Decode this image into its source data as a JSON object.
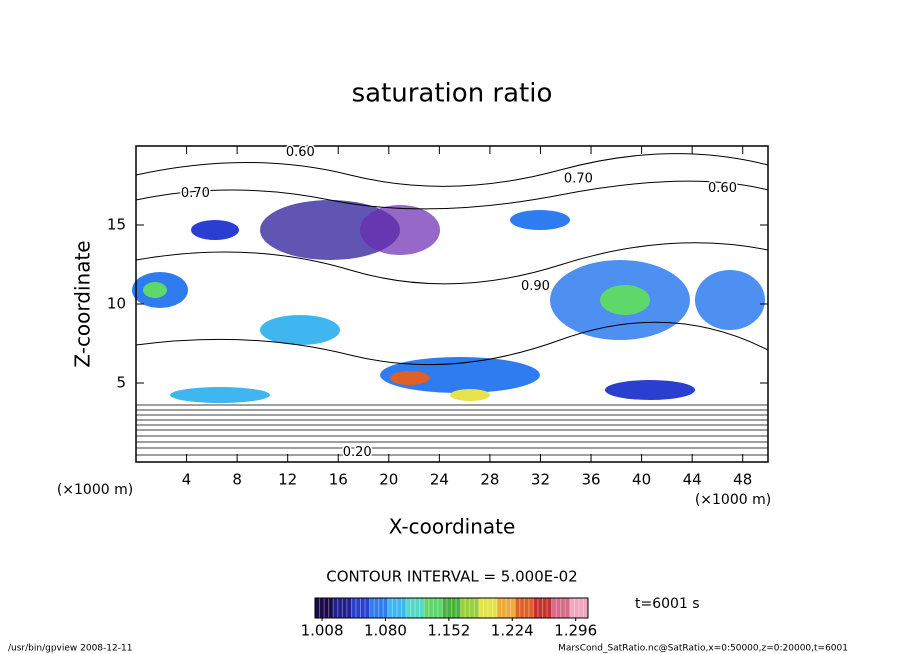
{
  "chart_data": {
    "type": "contour",
    "title": "saturation ratio",
    "x_label": "X-coordinate",
    "y_label": "Z-coordinate",
    "x_unit": "(×1000 m)",
    "y_unit": "(×1000 m)",
    "xlim": [
      0,
      50
    ],
    "ylim": [
      0,
      20
    ],
    "xticks": [
      4,
      8,
      12,
      16,
      20,
      24,
      28,
      32,
      36,
      40,
      44,
      48
    ],
    "yticks": [
      5,
      10,
      15
    ],
    "contour_interval": "CONTOUR INTERVAL = 5.000E-02",
    "contour_labels": [
      {
        "label": "0.60",
        "x": 13.0,
        "z": 19.6
      },
      {
        "label": "0.70",
        "x": 4.7,
        "z": 17.0
      },
      {
        "label": "0.70",
        "x": 35.0,
        "z": 17.9
      },
      {
        "label": "0.60",
        "x": 46.4,
        "z": 17.3
      },
      {
        "label": "0.90",
        "x": 31.6,
        "z": 11.1
      },
      {
        "label": "0.20",
        "x": 17.5,
        "z": 0.6
      }
    ],
    "colorbar": {
      "clim": [
        1.0,
        1.31
      ],
      "ticks": [
        1.008,
        {
          "value": 1.08,
          "label": "1.080"
        },
        1.152,
        1.224,
        1.296
      ],
      "colors": [
        "#1a0a4a",
        "#1f1f8f",
        "#2a3fd0",
        "#2f7bf0",
        "#3fb6f0",
        "#55d7c8",
        "#5ed86a",
        "#4ab23c",
        "#9ad13a",
        "#e6e24a",
        "#f0a93a",
        "#e0602a",
        "#c83030",
        "#d86a8a",
        "#f0a8c0"
      ]
    },
    "time_label": "t=6001 s",
    "footer_left": "/usr/bin/gpview  2008-12-11",
    "footer_right": "MarsCond_SatRatio.nc@SatRatio,x=0:50000,z=0:20000,t=6001"
  }
}
